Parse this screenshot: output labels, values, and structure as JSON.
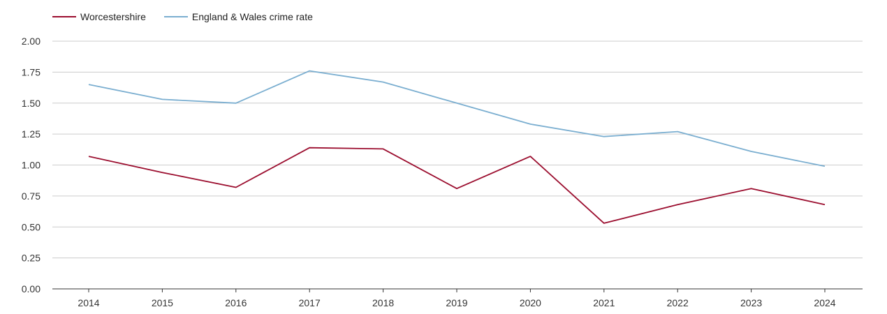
{
  "chart_data": {
    "type": "line",
    "x": [
      "2014",
      "2015",
      "2016",
      "2017",
      "2018",
      "2019",
      "2020",
      "2021",
      "2022",
      "2023",
      "2024"
    ],
    "series": [
      {
        "name": "Worcestershire",
        "color": "#9b0d2e",
        "values": [
          1.07,
          0.94,
          0.82,
          1.14,
          1.13,
          0.81,
          1.07,
          0.53,
          0.68,
          0.81,
          0.68
        ]
      },
      {
        "name": "England & Wales crime rate",
        "color": "#7aaed0",
        "values": [
          1.65,
          1.53,
          1.5,
          1.76,
          1.67,
          1.5,
          1.33,
          1.23,
          1.27,
          1.11,
          0.99
        ]
      }
    ],
    "ylim": [
      0,
      2
    ],
    "yticks": [
      "0.00",
      "0.25",
      "0.50",
      "0.75",
      "1.00",
      "1.25",
      "1.50",
      "1.75",
      "2.00"
    ],
    "legend_position": "top-left",
    "grid": true
  }
}
